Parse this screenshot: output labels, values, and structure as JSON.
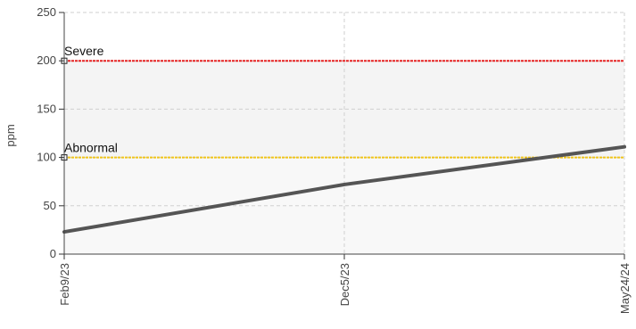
{
  "chart_data": {
    "type": "line",
    "title": "",
    "xlabel": "",
    "ylabel": "ppm",
    "ylim": [
      0,
      250
    ],
    "yticks": [
      0,
      50,
      100,
      150,
      200,
      250
    ],
    "xticks": [
      "Feb9/23",
      "Dec5/23",
      "May24/24"
    ],
    "grid": true,
    "series": [
      {
        "x": [
          "Feb9/23",
          "Dec5/23",
          "May24/24"
        ],
        "values": [
          23,
          72,
          111
        ],
        "color": "#555555"
      }
    ],
    "thresholds": [
      {
        "name": "Severe",
        "value": 200,
        "color": "#e52222"
      },
      {
        "name": "Abnormal",
        "value": 100,
        "color": "#f0c419"
      }
    ],
    "bands": [
      {
        "from": 100,
        "to": 200,
        "color": "#f4f4f4"
      },
      {
        "from": 0,
        "to": 100,
        "color": "#f8f8f8"
      }
    ]
  }
}
